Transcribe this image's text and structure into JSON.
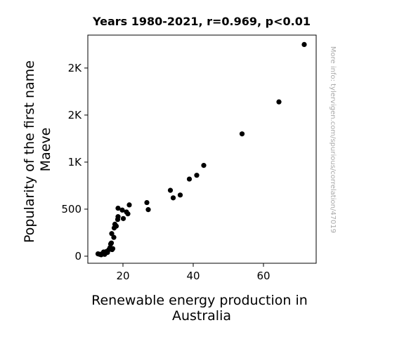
{
  "chart_data": {
    "type": "scatter",
    "title": "Years 1980-2021, r=0.969, p<0.01",
    "xlabel": [
      "Renewable energy production in",
      "Australia"
    ],
    "ylabel": [
      "Popularity of the first name",
      "Maeve"
    ],
    "watermark": "More info: tylervigen.com/spurious/correlation/47019",
    "xlim": [
      10,
      75
    ],
    "ylim": [
      -75,
      2350
    ],
    "xticks": [
      {
        "value": 20,
        "label": "20"
      },
      {
        "value": 40,
        "label": "40"
      },
      {
        "value": 60,
        "label": "60"
      }
    ],
    "yticks": [
      {
        "value": 0,
        "label": "0"
      },
      {
        "value": 500,
        "label": "500"
      },
      {
        "value": 1000,
        "label": "1K"
      },
      {
        "value": 1500,
        "label": "2K"
      },
      {
        "value": 2000,
        "label": "2K"
      }
    ],
    "grid": false,
    "marker_color": "#000000",
    "points": [
      {
        "x": 12.9,
        "y": 25
      },
      {
        "x": 13.4,
        "y": 20
      },
      {
        "x": 13.8,
        "y": 15
      },
      {
        "x": 14.2,
        "y": 30
      },
      {
        "x": 14.5,
        "y": 45
      },
      {
        "x": 14.8,
        "y": 20
      },
      {
        "x": 15.1,
        "y": 35
      },
      {
        "x": 15.3,
        "y": 50
      },
      {
        "x": 15.6,
        "y": 40
      },
      {
        "x": 16.0,
        "y": 70
      },
      {
        "x": 16.3,
        "y": 90
      },
      {
        "x": 16.5,
        "y": 130
      },
      {
        "x": 16.7,
        "y": 140
      },
      {
        "x": 16.9,
        "y": 70
      },
      {
        "x": 17.1,
        "y": 80
      },
      {
        "x": 16.8,
        "y": 240
      },
      {
        "x": 17.4,
        "y": 200
      },
      {
        "x": 17.5,
        "y": 300
      },
      {
        "x": 17.7,
        "y": 340
      },
      {
        "x": 18.1,
        "y": 320
      },
      {
        "x": 18.5,
        "y": 390
      },
      {
        "x": 18.6,
        "y": 420
      },
      {
        "x": 18.6,
        "y": 510
      },
      {
        "x": 19.8,
        "y": 490
      },
      {
        "x": 20.1,
        "y": 400
      },
      {
        "x": 21.0,
        "y": 470
      },
      {
        "x": 21.4,
        "y": 450
      },
      {
        "x": 21.8,
        "y": 545
      },
      {
        "x": 26.8,
        "y": 570
      },
      {
        "x": 27.2,
        "y": 495
      },
      {
        "x": 33.5,
        "y": 700
      },
      {
        "x": 34.3,
        "y": 620
      },
      {
        "x": 36.3,
        "y": 650
      },
      {
        "x": 38.9,
        "y": 820
      },
      {
        "x": 41.0,
        "y": 860
      },
      {
        "x": 43.0,
        "y": 965
      },
      {
        "x": 53.9,
        "y": 1300
      },
      {
        "x": 64.4,
        "y": 1640
      },
      {
        "x": 71.6,
        "y": 2250
      }
    ]
  }
}
